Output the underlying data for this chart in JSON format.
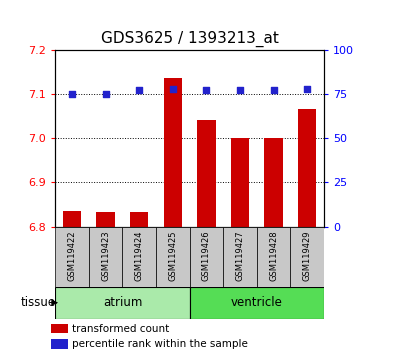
{
  "title": "GDS3625 / 1393213_at",
  "samples": [
    "GSM119422",
    "GSM119423",
    "GSM119424",
    "GSM119425",
    "GSM119426",
    "GSM119427",
    "GSM119428",
    "GSM119429"
  ],
  "transformed_count": [
    6.835,
    6.832,
    6.832,
    7.135,
    7.04,
    7.0,
    7.0,
    7.065
  ],
  "percentile_rank": [
    75,
    75,
    77,
    78,
    77,
    77,
    77,
    78
  ],
  "groups": [
    {
      "label": "atrium",
      "indices": [
        0,
        1,
        2,
        3
      ],
      "color": "#aaeaaa"
    },
    {
      "label": "ventricle",
      "indices": [
        4,
        5,
        6,
        7
      ],
      "color": "#55dd55"
    }
  ],
  "ylim_left": [
    6.8,
    7.2
  ],
  "ylim_right": [
    0,
    100
  ],
  "yticks_left": [
    6.8,
    6.9,
    7.0,
    7.1,
    7.2
  ],
  "yticks_right": [
    0,
    25,
    50,
    75,
    100
  ],
  "bar_color": "#cc0000",
  "dot_color": "#2222cc",
  "bar_width": 0.55,
  "xlabel": "tissue",
  "legend_items": [
    "transformed count",
    "percentile rank within the sample"
  ],
  "legend_colors": [
    "#cc0000",
    "#2222cc"
  ],
  "sample_bg_color": "#c8c8c8",
  "title_fontsize": 11,
  "tick_fontsize": 8,
  "label_fontsize": 8
}
